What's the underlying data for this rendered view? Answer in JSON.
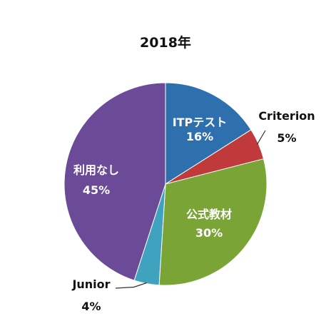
{
  "chart_data": {
    "type": "pie",
    "title": "2018年",
    "slices": [
      {
        "label": "ITPテスト",
        "value": 16,
        "value_label": "16%",
        "color": "#2E6FAE"
      },
      {
        "label": "Criterion",
        "value": 5,
        "value_label": "5%",
        "color": "#C0393B"
      },
      {
        "label": "公式教材",
        "value": 30,
        "value_label": "30%",
        "color": "#7BA437"
      },
      {
        "label": "Junior",
        "value": 4,
        "value_label": "4%",
        "color": "#3FA3BF"
      },
      {
        "label": "利用なし",
        "value": 45,
        "value_label": "45%",
        "color": "#6B4A97"
      }
    ]
  }
}
